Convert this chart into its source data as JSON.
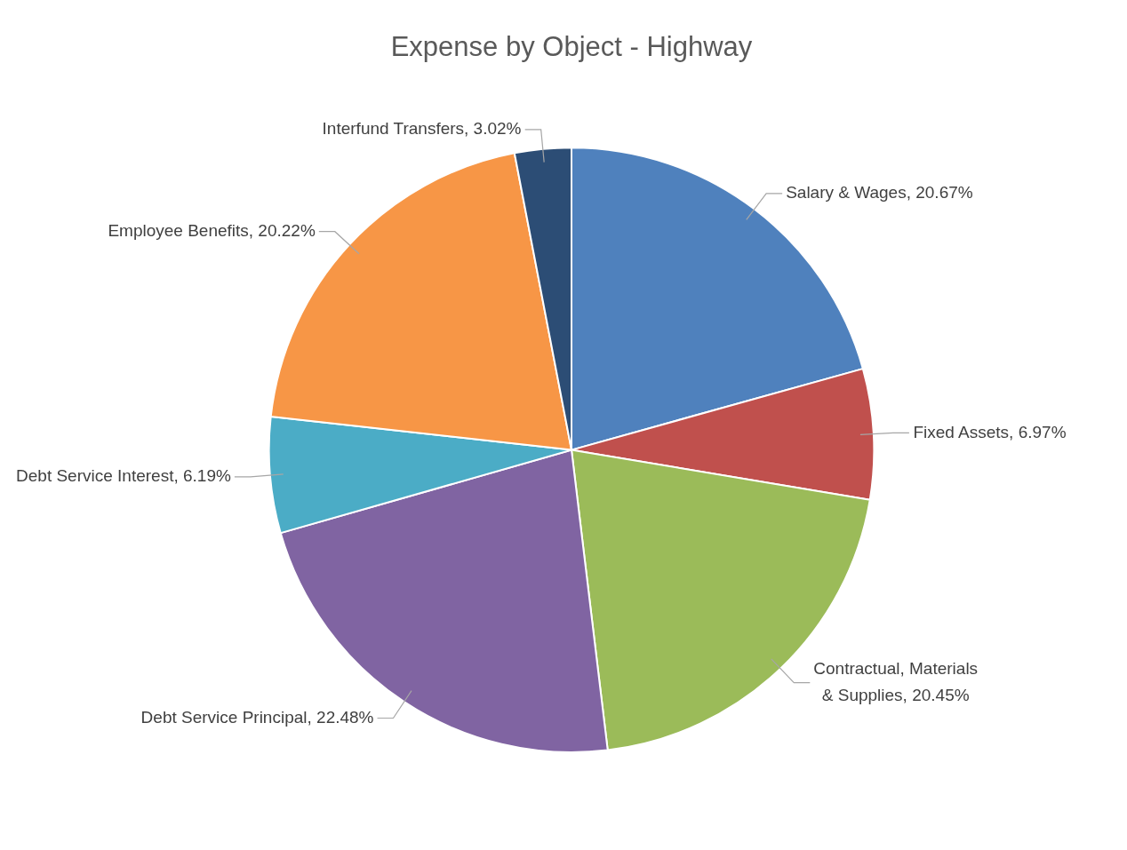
{
  "chart_data": {
    "type": "pie",
    "title": "Expense by Object - Highway",
    "categories": [
      "Salary & Wages",
      "Fixed Assets",
      "Contractual, Materials & Supplies",
      "Debt Service Principal",
      "Debt Service Interest",
      "Employee Benefits",
      "Interfund Transfers"
    ],
    "values": [
      20.67,
      6.97,
      20.45,
      22.48,
      6.19,
      20.22,
      3.02
    ],
    "value_labels": [
      "20.67%",
      "6.97%",
      "20.45%",
      "22.48%",
      "6.19%",
      "20.22%",
      "3.02%"
    ],
    "colors": [
      "#4f81bd",
      "#c0504d",
      "#9bbb59",
      "#8064a2",
      "#4bacc6",
      "#f79646",
      "#2c4d75"
    ],
    "legend": false
  }
}
